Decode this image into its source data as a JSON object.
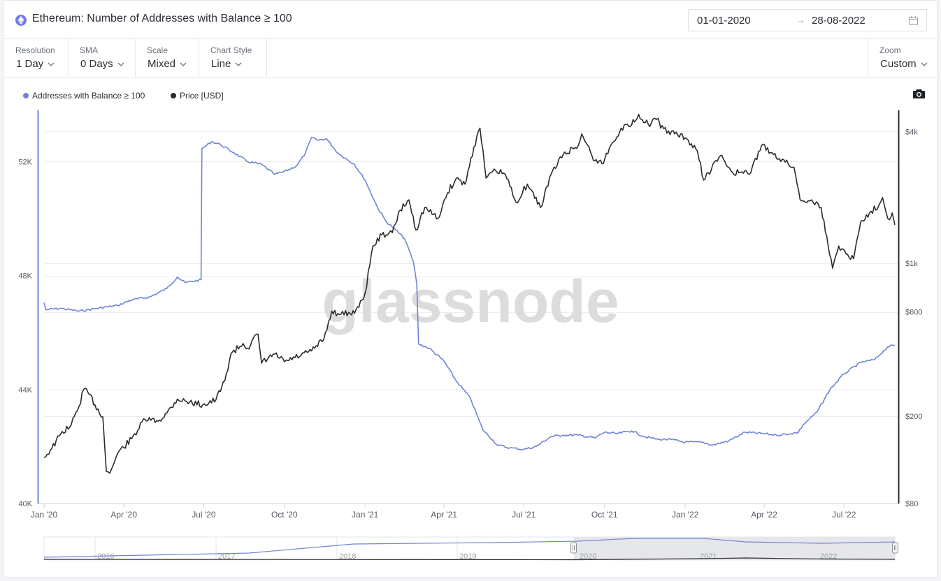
{
  "header": {
    "title": "Ethereum: Number of Addresses with Balance ≥ 100",
    "date_from": "01-01-2020",
    "date_arrow": "→",
    "date_to": "28-08-2022"
  },
  "toolbar": {
    "resolution": {
      "label": "Resolution",
      "value": "1 Day"
    },
    "sma": {
      "label": "SMA",
      "value": "0 Days"
    },
    "scale": {
      "label": "Scale",
      "value": "Mixed"
    },
    "chart_style": {
      "label": "Chart Style",
      "value": "Line"
    },
    "zoom": {
      "label": "Zoom",
      "value": "Custom"
    }
  },
  "legend": [
    {
      "name": "Addresses with Balance ≥ 100",
      "color": "#6e84d6"
    },
    {
      "name": "Price [USD]",
      "color": "#2b2b2b"
    }
  ],
  "watermark": "glassnode",
  "chart_data": {
    "type": "line",
    "x_ticks": [
      "Jan '20",
      "Apr '20",
      "Jul '20",
      "Oct '20",
      "Jan '21",
      "Apr '21",
      "Jul '21",
      "Oct '21",
      "Jan '22",
      "Apr '22",
      "Jul '22"
    ],
    "y_left": {
      "scale": "linear",
      "ticks": [
        "40K",
        "44K",
        "48K",
        "52K"
      ],
      "tick_values": [
        40000,
        44000,
        48000,
        52000
      ],
      "range": [
        40000,
        53800
      ]
    },
    "y_right": {
      "scale": "log",
      "ticks": [
        "$80",
        "$200",
        "$600",
        "$1k",
        "$4k"
      ],
      "tick_values": [
        80,
        200,
        600,
        1000,
        4000
      ],
      "range": [
        80,
        5000
      ]
    },
    "grid": true,
    "legend_position": "top-left",
    "series": [
      {
        "name": "Addresses with Balance ≥ 100",
        "axis": "left",
        "color": "#6e84d6",
        "points": [
          [
            "2020-01-01",
            47.05
          ],
          [
            "2020-01-03",
            46.8
          ],
          [
            "2020-01-20",
            46.85
          ],
          [
            "2020-02-10",
            46.75
          ],
          [
            "2020-03-01",
            46.85
          ],
          [
            "2020-03-25",
            46.95
          ],
          [
            "2020-04-10",
            47.15
          ],
          [
            "2020-05-01",
            47.25
          ],
          [
            "2020-05-20",
            47.55
          ],
          [
            "2020-06-01",
            47.95
          ],
          [
            "2020-06-10",
            47.75
          ],
          [
            "2020-06-28",
            47.85
          ],
          [
            "2020-06-29",
            52.45
          ],
          [
            "2020-07-10",
            52.7
          ],
          [
            "2020-07-20",
            52.6
          ],
          [
            "2020-08-05",
            52.3
          ],
          [
            "2020-08-20",
            52.0
          ],
          [
            "2020-09-05",
            51.9
          ],
          [
            "2020-09-20",
            51.55
          ],
          [
            "2020-10-01",
            51.65
          ],
          [
            "2020-10-15",
            51.85
          ],
          [
            "2020-10-25",
            52.3
          ],
          [
            "2020-11-01",
            52.85
          ],
          [
            "2020-11-08",
            52.75
          ],
          [
            "2020-11-18",
            52.8
          ],
          [
            "2020-12-01",
            52.3
          ],
          [
            "2020-12-20",
            51.9
          ],
          [
            "2021-01-01",
            51.35
          ],
          [
            "2021-01-15",
            50.4
          ],
          [
            "2021-01-25",
            49.9
          ],
          [
            "2021-02-05",
            49.6
          ],
          [
            "2021-02-15",
            49.3
          ],
          [
            "2021-02-25",
            48.5
          ],
          [
            "2021-03-01",
            47.7
          ],
          [
            "2021-03-03",
            45.6
          ],
          [
            "2021-03-15",
            45.45
          ],
          [
            "2021-04-01",
            45.0
          ],
          [
            "2021-04-15",
            44.3
          ],
          [
            "2021-05-01",
            43.7
          ],
          [
            "2021-05-15",
            42.6
          ],
          [
            "2021-06-01",
            42.05
          ],
          [
            "2021-06-15",
            41.95
          ],
          [
            "2021-07-01",
            41.9
          ],
          [
            "2021-07-15",
            42.0
          ],
          [
            "2021-08-01",
            42.35
          ],
          [
            "2021-08-15",
            42.4
          ],
          [
            "2021-09-01",
            42.4
          ],
          [
            "2021-09-20",
            42.3
          ],
          [
            "2021-10-01",
            42.5
          ],
          [
            "2021-10-15",
            42.45
          ],
          [
            "2021-11-01",
            42.55
          ],
          [
            "2021-11-15",
            42.35
          ],
          [
            "2021-12-01",
            42.25
          ],
          [
            "2021-12-15",
            42.25
          ],
          [
            "2022-01-01",
            42.15
          ],
          [
            "2022-01-20",
            42.15
          ],
          [
            "2022-02-01",
            42.05
          ],
          [
            "2022-02-20",
            42.2
          ],
          [
            "2022-03-10",
            42.5
          ],
          [
            "2022-04-01",
            42.45
          ],
          [
            "2022-04-15",
            42.4
          ],
          [
            "2022-05-01",
            42.45
          ],
          [
            "2022-05-10",
            42.5
          ],
          [
            "2022-05-15",
            42.75
          ],
          [
            "2022-05-31",
            43.2
          ],
          [
            "2022-06-15",
            44.0
          ],
          [
            "2022-07-01",
            44.55
          ],
          [
            "2022-07-20",
            44.95
          ],
          [
            "2022-08-05",
            45.05
          ],
          [
            "2022-08-20",
            45.5
          ],
          [
            "2022-08-28",
            45.55
          ]
        ]
      },
      {
        "name": "Price [USD]",
        "axis": "right",
        "color": "#2b2b2b",
        "points": [
          [
            "2020-01-01",
            130
          ],
          [
            "2020-01-10",
            143
          ],
          [
            "2020-01-20",
            166
          ],
          [
            "2020-02-01",
            183
          ],
          [
            "2020-02-10",
            223
          ],
          [
            "2020-02-15",
            265
          ],
          [
            "2020-02-20",
            258
          ],
          [
            "2020-02-28",
            226
          ],
          [
            "2020-03-08",
            199
          ],
          [
            "2020-03-12",
            112
          ],
          [
            "2020-03-16",
            110
          ],
          [
            "2020-03-25",
            136
          ],
          [
            "2020-04-10",
            158
          ],
          [
            "2020-04-25",
            194
          ],
          [
            "2020-05-10",
            190
          ],
          [
            "2020-05-20",
            207
          ],
          [
            "2020-06-01",
            240
          ],
          [
            "2020-06-15",
            232
          ],
          [
            "2020-06-30",
            226
          ],
          [
            "2020-07-15",
            238
          ],
          [
            "2020-07-25",
            290
          ],
          [
            "2020-08-01",
            385
          ],
          [
            "2020-08-15",
            430
          ],
          [
            "2020-08-20",
            410
          ],
          [
            "2020-09-01",
            475
          ],
          [
            "2020-09-05",
            350
          ],
          [
            "2020-09-20",
            385
          ],
          [
            "2020-10-01",
            355
          ],
          [
            "2020-10-20",
            380
          ],
          [
            "2020-11-01",
            398
          ],
          [
            "2020-11-15",
            450
          ],
          [
            "2020-11-24",
            605
          ],
          [
            "2020-12-01",
            590
          ],
          [
            "2020-12-15",
            590
          ],
          [
            "2020-12-25",
            630
          ],
          [
            "2021-01-01",
            730
          ],
          [
            "2021-01-10",
            1200
          ],
          [
            "2021-01-20",
            1350
          ],
          [
            "2021-02-01",
            1380
          ],
          [
            "2021-02-10",
            1750
          ],
          [
            "2021-02-20",
            1950
          ],
          [
            "2021-02-28",
            1420
          ],
          [
            "2021-03-10",
            1800
          ],
          [
            "2021-03-25",
            1600
          ],
          [
            "2021-04-05",
            2100
          ],
          [
            "2021-04-15",
            2450
          ],
          [
            "2021-04-25",
            2300
          ],
          [
            "2021-05-05",
            3400
          ],
          [
            "2021-05-12",
            4150
          ],
          [
            "2021-05-19",
            2450
          ],
          [
            "2021-05-30",
            2650
          ],
          [
            "2021-06-10",
            2550
          ],
          [
            "2021-06-22",
            1900
          ],
          [
            "2021-07-05",
            2300
          ],
          [
            "2021-07-20",
            1800
          ],
          [
            "2021-08-01",
            2550
          ],
          [
            "2021-08-15",
            3150
          ],
          [
            "2021-09-01",
            3450
          ],
          [
            "2021-09-05",
            3900
          ],
          [
            "2021-09-20",
            2950
          ],
          [
            "2021-09-28",
            2850
          ],
          [
            "2021-10-10",
            3550
          ],
          [
            "2021-10-20",
            4150
          ],
          [
            "2021-11-01",
            4300
          ],
          [
            "2021-11-09",
            4800
          ],
          [
            "2021-11-20",
            4300
          ],
          [
            "2021-12-01",
            4600
          ],
          [
            "2021-12-04",
            4150
          ],
          [
            "2021-12-20",
            3900
          ],
          [
            "2022-01-01",
            3750
          ],
          [
            "2022-01-15",
            3250
          ],
          [
            "2022-01-22",
            2400
          ],
          [
            "2022-02-10",
            3100
          ],
          [
            "2022-02-24",
            2600
          ],
          [
            "2022-03-05",
            2600
          ],
          [
            "2022-03-15",
            2550
          ],
          [
            "2022-03-29",
            3450
          ],
          [
            "2022-04-10",
            3200
          ],
          [
            "2022-04-25",
            2900
          ],
          [
            "2022-05-05",
            2750
          ],
          [
            "2022-05-12",
            1950
          ],
          [
            "2022-05-25",
            1950
          ],
          [
            "2022-06-05",
            1800
          ],
          [
            "2022-06-13",
            1200
          ],
          [
            "2022-06-18",
            950
          ],
          [
            "2022-06-25",
            1200
          ],
          [
            "2022-07-05",
            1100
          ],
          [
            "2022-07-12",
            1050
          ],
          [
            "2022-07-20",
            1550
          ],
          [
            "2022-07-30",
            1700
          ],
          [
            "2022-08-10",
            1850
          ],
          [
            "2022-08-14",
            2000
          ],
          [
            "2022-08-20",
            1600
          ],
          [
            "2022-08-25",
            1700
          ],
          [
            "2022-08-28",
            1500
          ]
        ]
      }
    ]
  },
  "navigator": {
    "years": [
      "2016",
      "2017",
      "2018",
      "2019",
      "2020",
      "2021",
      "2022"
    ]
  }
}
